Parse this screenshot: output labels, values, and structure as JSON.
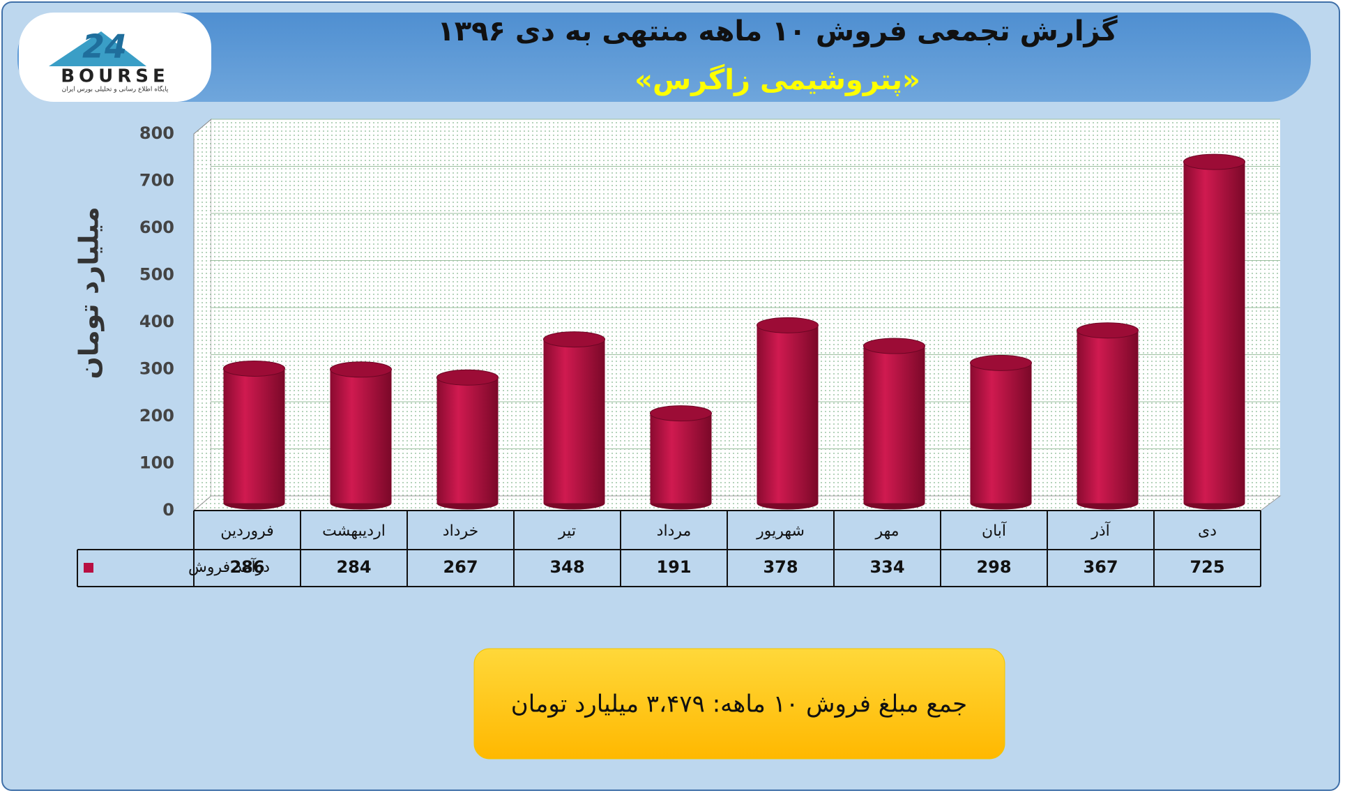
{
  "logo": {
    "number": "24",
    "text": "BOURSE",
    "tagline": "پایگاه اطلاع رسانی و تحلیلی بورس ایران"
  },
  "chart_data": {
    "type": "bar",
    "title": "گزارش تجمعی فروش ۱۰ ماهه منتهی به دی ۱۳۹۶",
    "subtitle": "«پتروشیمی زاگرس»",
    "y_label": "میلیارد تومان",
    "categories": [
      "فروردین",
      "اردیبهشت",
      "خرداد",
      "تیر",
      "مرداد",
      "شهریور",
      "مهر",
      "آبان",
      "آذر",
      "دی"
    ],
    "series": [
      {
        "name": "درآمد فروش",
        "color": "#b80f42",
        "values": [
          286,
          284,
          267,
          348,
          191,
          378,
          334,
          298,
          367,
          725
        ]
      }
    ],
    "ylim": [
      0,
      800
    ],
    "yticks": [
      0,
      100,
      200,
      300,
      400,
      500,
      600,
      700,
      800
    ],
    "grid": true
  },
  "summary": "جمع مبلغ فروش ۱۰ ماهه: ۳،۴۷۹ میلیارد تومان"
}
